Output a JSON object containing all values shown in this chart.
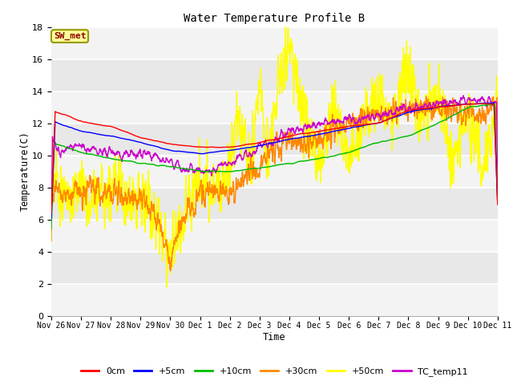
{
  "title": "Water Temperature Profile B",
  "xlabel": "Time",
  "ylabel": "Temperature(C)",
  "ylim": [
    0,
    18
  ],
  "yticks": [
    0,
    2,
    4,
    6,
    8,
    10,
    12,
    14,
    16,
    18
  ],
  "annotation_text": "SW_met",
  "annotation_color": "#8B0000",
  "annotation_bg": "#FFFF99",
  "annotation_edge": "#999900",
  "legend_labels": [
    "0cm",
    "+5cm",
    "+10cm",
    "+30cm",
    "+50cm",
    "TC_temp11"
  ],
  "legend_colors": [
    "#FF0000",
    "#0000FF",
    "#00BB00",
    "#FF8800",
    "#FFFF00",
    "#CC00CC"
  ],
  "line_colors": {
    "0cm": "#FF0000",
    "+5cm": "#0000FF",
    "+10cm": "#00BB00",
    "+30cm": "#FF8800",
    "+50cm": "#FFFF00",
    "TC_temp11": "#CC00CC"
  },
  "tick_labels": [
    "Nov 26",
    "Nov 27",
    "Nov 28",
    "Nov 29",
    "Nov 30",
    "Dec 1",
    "Dec 2",
    "Dec 3",
    "Dec 4",
    "Dec 5",
    "Dec 6",
    "Dec 7",
    "Dec 8",
    "Dec 9",
    "Dec 10",
    "Dec 11"
  ]
}
